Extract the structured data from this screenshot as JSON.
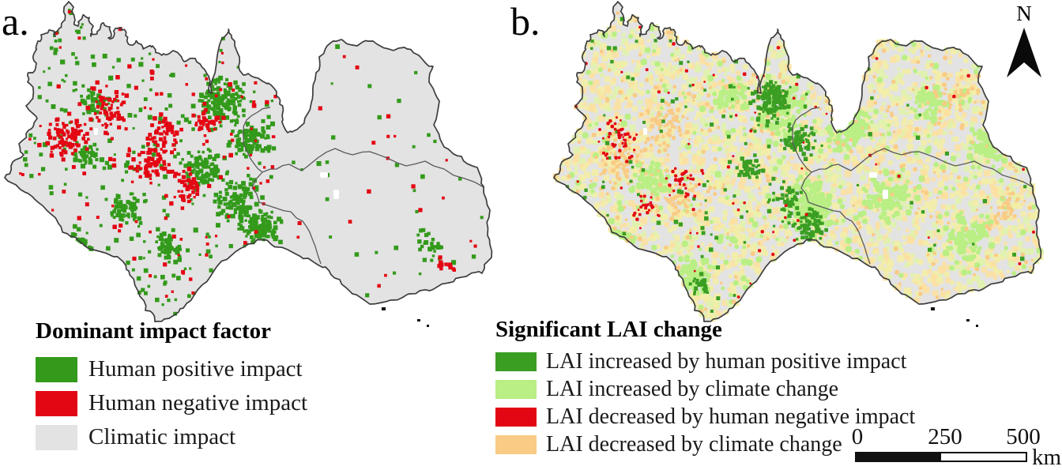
{
  "figure": {
    "panel_a_label": "a.",
    "panel_b_label": "b."
  },
  "panel_a": {
    "legend_title": "Dominant impact factor",
    "legend_items": [
      {
        "label": "Human positive impact",
        "color": "#339a1b"
      },
      {
        "label": "Human negative impact",
        "color": "#e30613"
      },
      {
        "label": "Climatic impact",
        "color": "#e3e3e3"
      }
    ]
  },
  "panel_b": {
    "legend_title": "Significant LAI change",
    "legend_items": [
      {
        "label": "LAI increased by human positive impact",
        "color": "#3a9e23"
      },
      {
        "label": "LAI increased by climate change",
        "color": "#b9ef84"
      },
      {
        "label": "LAI decreased by human negative impact",
        "color": "#e30613"
      },
      {
        "label": "LAI decreased by climate change",
        "color": "#f9cb85"
      }
    ]
  },
  "north_arrow": {
    "label": "N"
  },
  "scale_bar": {
    "tick_0": "0",
    "tick_250": "250",
    "tick_500": "500",
    "unit": "km"
  },
  "map_style": {
    "land_color": "#e3e3e3",
    "outline_color": "#3d3d3d",
    "border_color": "#5a5a5a",
    "water_color": "#ffffff",
    "island_color": "#111111",
    "speckle_colors": [
      "#f3eda6",
      "#fce0a0",
      "#e0f2ac"
    ]
  }
}
